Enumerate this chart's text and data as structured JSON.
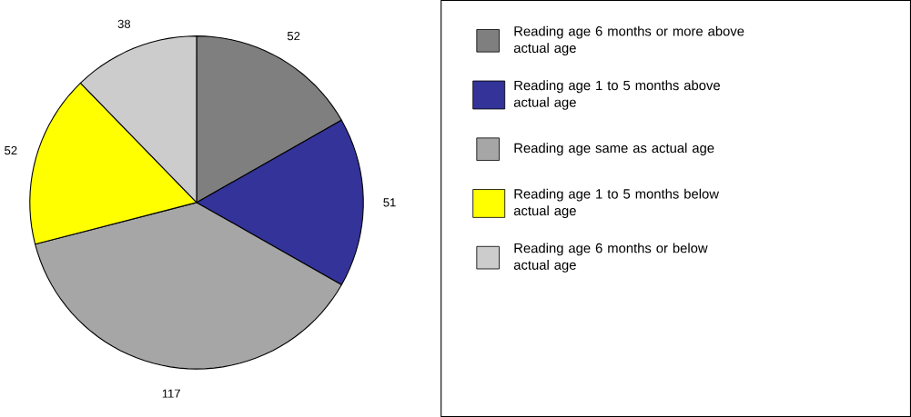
{
  "chart_data": {
    "type": "pie",
    "categories": [
      "Reading age 6 months or more above actual age",
      "Reading age 1 to 5 months above actual age",
      "Reading age same as actual age",
      "Reading age 1 to 5 months below actual age",
      "Reading age 6 months or below actual age"
    ],
    "values": [
      52,
      51,
      117,
      52,
      38
    ],
    "colors": [
      "#7f7f7f",
      "#333399",
      "#a6a6a6",
      "#ffff00",
      "#cccccc"
    ],
    "data_labels": true,
    "legend": "right"
  }
}
